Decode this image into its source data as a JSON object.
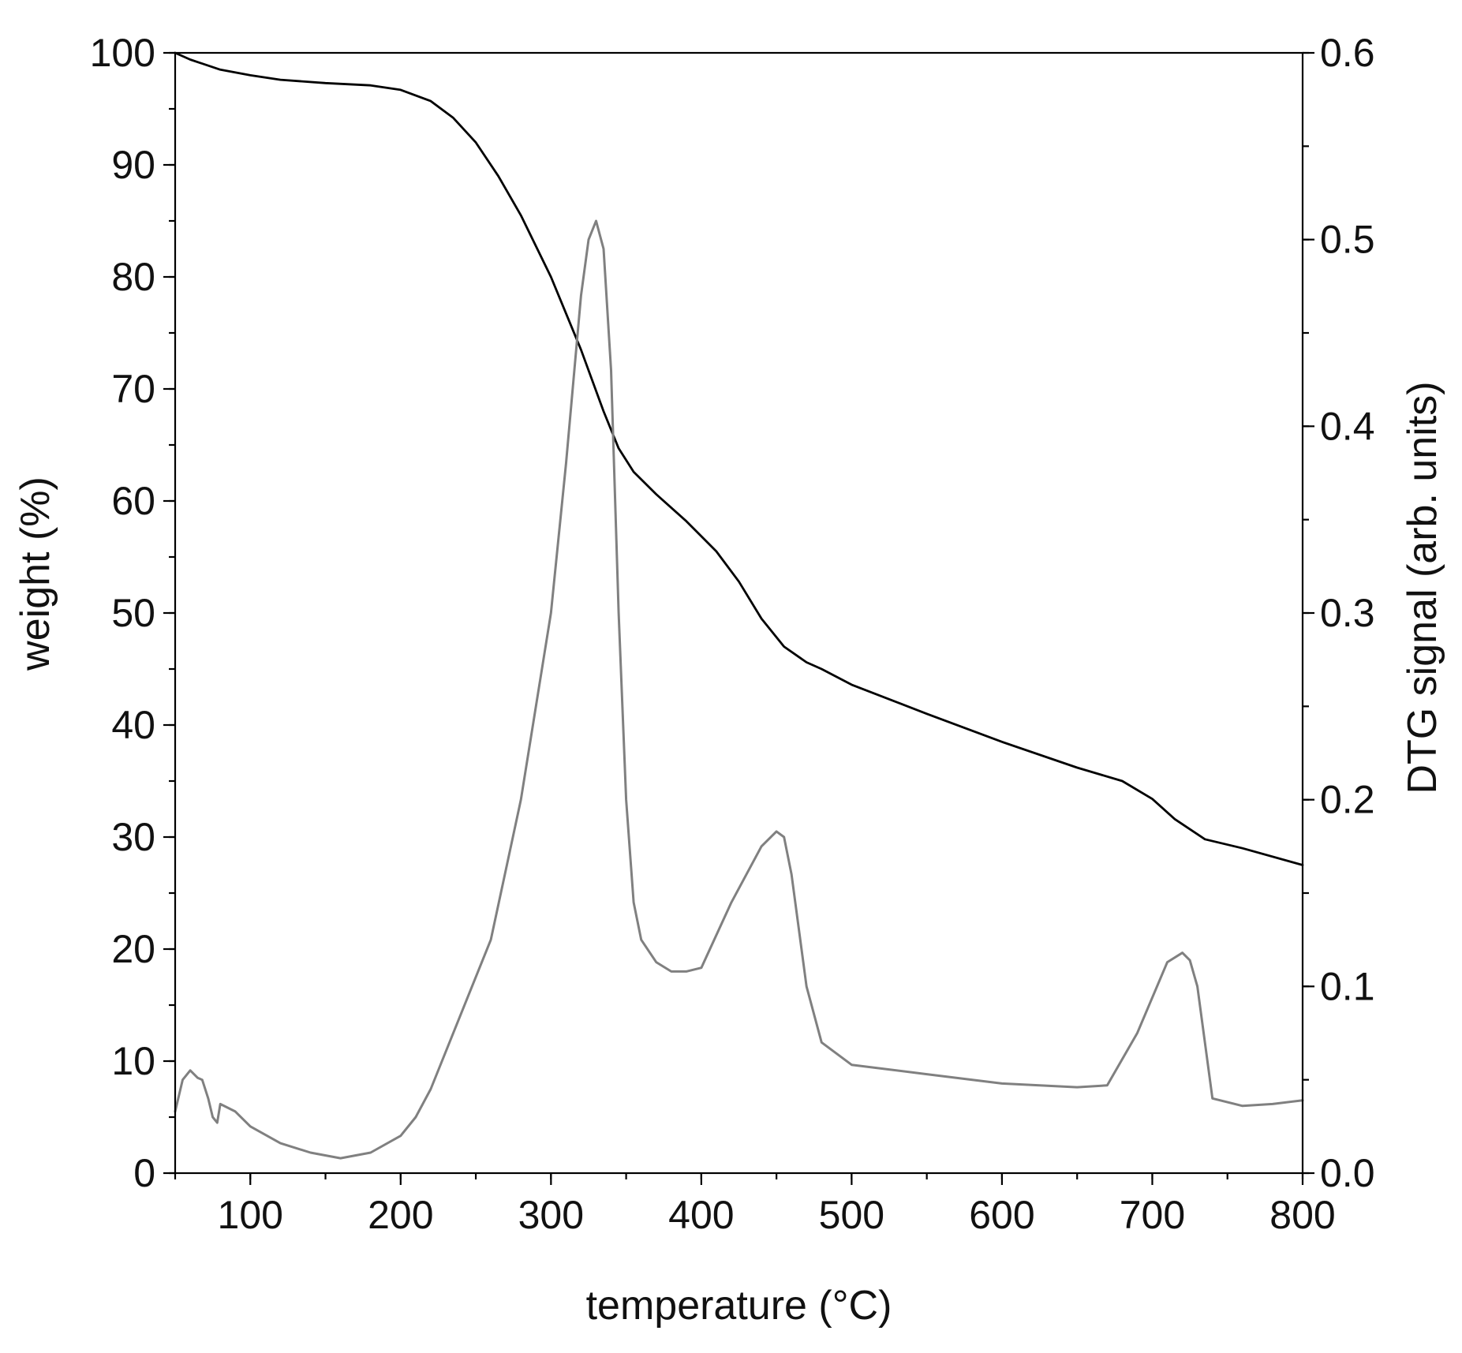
{
  "chart_data": {
    "type": "line",
    "title": "",
    "xlabel": "temperature (°C)",
    "ylabel": "weight (%)",
    "y2label": "DTG signal (arb. units)",
    "xlim": [
      50,
      800
    ],
    "ylim": [
      0,
      100
    ],
    "y2lim": [
      0,
      0.6
    ],
    "x_ticks": [
      100,
      200,
      300,
      400,
      500,
      600,
      700,
      800
    ],
    "x_minor_step": 50,
    "y_ticks": [
      0,
      10,
      20,
      30,
      40,
      50,
      60,
      70,
      80,
      90,
      100
    ],
    "y_minor_step": 5,
    "y2_ticks": [
      0.0,
      0.1,
      0.2,
      0.3,
      0.4,
      0.5,
      0.6
    ],
    "y2_tick_labels": [
      "0.0",
      "0.1",
      "0.2",
      "0.3",
      "0.4",
      "0.5",
      "0.6"
    ],
    "y2_minor_step": 0.05,
    "grid": false,
    "legend": "none",
    "series": [
      {
        "axis": "left",
        "color": "#000000",
        "x": [
          50,
          60,
          80,
          100,
          120,
          150,
          180,
          200,
          220,
          235,
          250,
          265,
          280,
          300,
          320,
          335,
          345,
          355,
          370,
          390,
          410,
          425,
          440,
          455,
          470,
          480,
          500,
          550,
          600,
          650,
          680,
          700,
          715,
          735,
          760,
          800
        ],
        "y": [
          100,
          99.4,
          98.5,
          98.0,
          97.6,
          97.3,
          97.1,
          96.7,
          95.7,
          94.2,
          92.0,
          89.0,
          85.5,
          80.0,
          73.5,
          68.0,
          64.7,
          62.6,
          60.6,
          58.2,
          55.5,
          52.8,
          49.5,
          47.0,
          45.6,
          45.0,
          43.6,
          41.0,
          38.5,
          36.2,
          35.0,
          33.4,
          31.6,
          29.8,
          29.0,
          27.5
        ]
      },
      {
        "axis": "right",
        "color": "#808080",
        "x": [
          50,
          55,
          60,
          65,
          68,
          72,
          75,
          78,
          80,
          90,
          100,
          120,
          140,
          160,
          180,
          200,
          210,
          220,
          240,
          260,
          280,
          300,
          310,
          320,
          325,
          330,
          335,
          340,
          345,
          350,
          355,
          360,
          370,
          380,
          390,
          400,
          420,
          440,
          450,
          455,
          460,
          465,
          470,
          480,
          500,
          550,
          600,
          650,
          670,
          690,
          710,
          720,
          725,
          730,
          740,
          760,
          780,
          800
        ],
        "y": [
          0.033,
          0.05,
          0.055,
          0.051,
          0.05,
          0.04,
          0.03,
          0.027,
          0.037,
          0.033,
          0.025,
          0.016,
          0.011,
          0.008,
          0.011,
          0.02,
          0.03,
          0.045,
          0.085,
          0.125,
          0.2,
          0.3,
          0.38,
          0.47,
          0.5,
          0.51,
          0.495,
          0.43,
          0.3,
          0.2,
          0.145,
          0.125,
          0.113,
          0.108,
          0.108,
          0.11,
          0.145,
          0.175,
          0.183,
          0.18,
          0.16,
          0.13,
          0.1,
          0.07,
          0.058,
          0.053,
          0.048,
          0.046,
          0.047,
          0.075,
          0.113,
          0.118,
          0.114,
          0.1,
          0.04,
          0.036,
          0.037,
          0.039
        ]
      }
    ]
  }
}
